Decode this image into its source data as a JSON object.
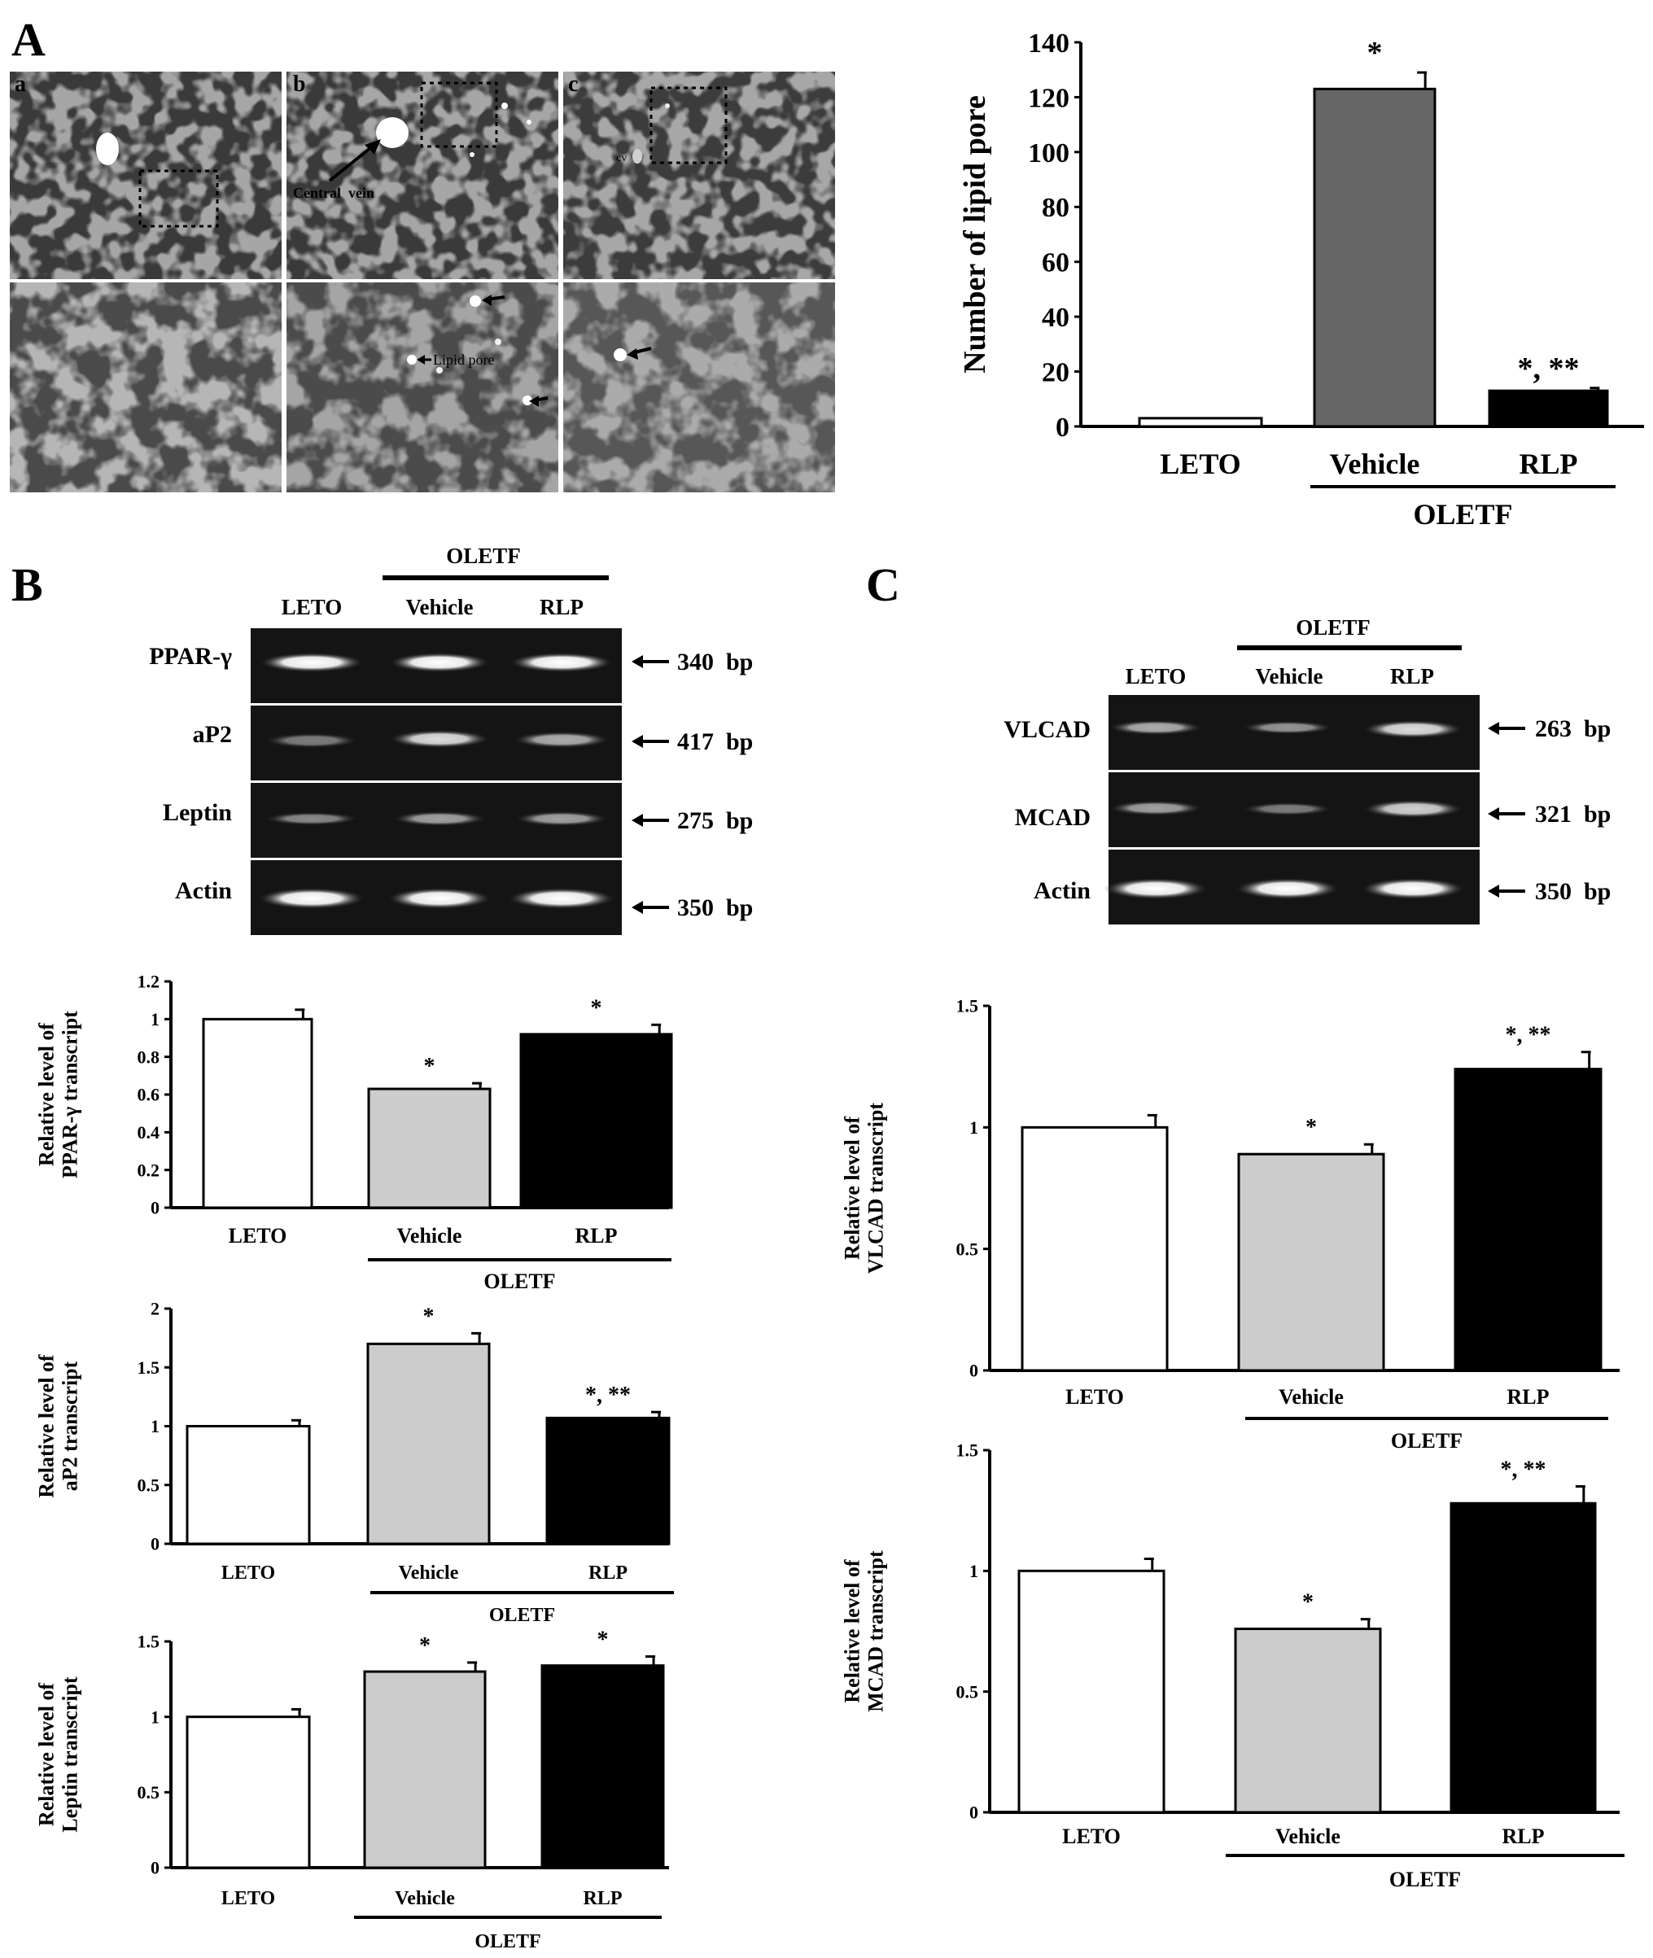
{
  "panel_labels": {
    "A": "A",
    "B": "B",
    "C": "C"
  },
  "micrographs": {
    "labels": [
      "a",
      "b",
      "c"
    ],
    "annotations": {
      "central_vein": "Central  vein",
      "lipid_pore": "Lipid pore",
      "cv": "cv"
    }
  },
  "gels": {
    "B": {
      "group_label": "OLETF",
      "lanes": [
        "LETO",
        "Vehicle",
        "RLP"
      ],
      "rows": [
        {
          "gene": "PPAR-γ",
          "size": "340  bp"
        },
        {
          "gene": "aP2",
          "size": "417  bp"
        },
        {
          "gene": "Leptin",
          "size": "275  bp"
        },
        {
          "gene": "Actin",
          "size": "350  bp"
        }
      ]
    },
    "C": {
      "group_label": "OLETF",
      "lanes": [
        "LETO",
        "Vehicle",
        "RLP"
      ],
      "rows": [
        {
          "gene": "VLCAD",
          "size": "263  bp"
        },
        {
          "gene": "MCAD",
          "size": "321  bp"
        },
        {
          "gene": "Actin",
          "size": "350  bp"
        }
      ]
    }
  },
  "chart_data": [
    {
      "id": "A-lipid-pore",
      "type": "bar",
      "categories": [
        "LETO",
        "Vehicle",
        "RLP"
      ],
      "values": [
        3,
        123,
        13
      ],
      "errors": [
        0,
        6,
        1
      ],
      "significance": [
        "",
        "*",
        "*, **"
      ],
      "group_label": "OLETF",
      "ylabel_lines": [
        "Number of lipid pore"
      ],
      "ylim": [
        0,
        140
      ],
      "yticks": [
        "0",
        "20",
        "40",
        "60",
        "80",
        "100",
        "120",
        "140"
      ],
      "colors": [
        "#ffffff",
        "#666666",
        "#000000"
      ]
    },
    {
      "id": "B-ppar",
      "type": "bar",
      "categories": [
        "LETO",
        "Vehicle",
        "RLP"
      ],
      "values": [
        1.0,
        0.63,
        0.92
      ],
      "errors": [
        0.05,
        0.03,
        0.05
      ],
      "significance": [
        "",
        "*",
        "*"
      ],
      "group_label": "OLETF",
      "ylabel_lines": [
        "Relative  level of",
        "PPAR-γ transcript"
      ],
      "ylim": [
        0,
        1.2
      ],
      "yticks": [
        "0",
        "0.2",
        "0.4",
        "0.6",
        "0.8",
        "1",
        "1.2"
      ],
      "colors": [
        "#ffffff",
        "#cccccc",
        "#000000"
      ]
    },
    {
      "id": "B-ap2",
      "type": "bar",
      "categories": [
        "LETO",
        "Vehicle",
        "RLP"
      ],
      "values": [
        1.0,
        1.7,
        1.07
      ],
      "errors": [
        0.05,
        0.09,
        0.05
      ],
      "significance": [
        "",
        "*",
        "*, **"
      ],
      "group_label": "OLETF",
      "ylabel_lines": [
        "Relative level of",
        "aP2 transcript"
      ],
      "ylim": [
        0,
        2
      ],
      "yticks": [
        "0",
        "0.5",
        "1",
        "1.5",
        "2"
      ],
      "colors": [
        "#ffffff",
        "#cccccc",
        "#000000"
      ]
    },
    {
      "id": "B-leptin",
      "type": "bar",
      "categories": [
        "LETO",
        "Vehicle",
        "RLP"
      ],
      "values": [
        1.0,
        1.3,
        1.34
      ],
      "errors": [
        0.05,
        0.06,
        0.06
      ],
      "significance": [
        "",
        "*",
        "*"
      ],
      "group_label": "OLETF",
      "ylabel_lines": [
        "Relative level of",
        "Leptin transcript"
      ],
      "ylim": [
        0,
        1.5
      ],
      "yticks": [
        "0",
        "0.5",
        "1",
        "1.5"
      ],
      "colors": [
        "#ffffff",
        "#cccccc",
        "#000000"
      ]
    },
    {
      "id": "C-vlcad",
      "type": "bar",
      "categories": [
        "LETO",
        "Vehicle",
        "RLP"
      ],
      "values": [
        1.0,
        0.89,
        1.24
      ],
      "errors": [
        0.05,
        0.04,
        0.07
      ],
      "significance": [
        "",
        "*",
        "*, **"
      ],
      "group_label": "OLETF",
      "ylabel_lines": [
        "Relative  level of",
        "VLCAD transcript"
      ],
      "ylim": [
        0,
        1.5
      ],
      "yticks": [
        "0",
        "0.5",
        "1",
        "1.5"
      ],
      "colors": [
        "#ffffff",
        "#cccccc",
        "#000000"
      ]
    },
    {
      "id": "C-mcad",
      "type": "bar",
      "categories": [
        "LETO",
        "Vehicle",
        "RLP"
      ],
      "values": [
        1.0,
        0.76,
        1.28
      ],
      "errors": [
        0.05,
        0.04,
        0.07
      ],
      "significance": [
        "",
        "*",
        "*, **"
      ],
      "group_label": "OLETF",
      "ylabel_lines": [
        "Relative level of",
        "MCAD transcript"
      ],
      "ylim": [
        0,
        1.5
      ],
      "yticks": [
        "0",
        "0.5",
        "1",
        "1.5"
      ],
      "colors": [
        "#ffffff",
        "#cccccc",
        "#000000"
      ]
    }
  ]
}
